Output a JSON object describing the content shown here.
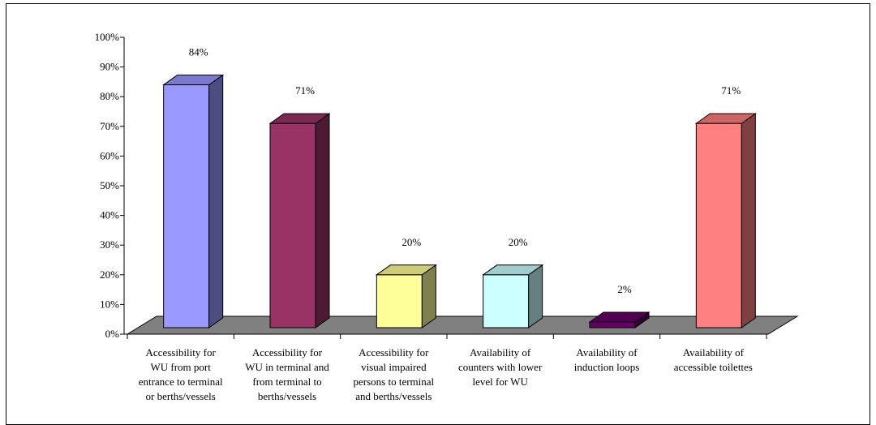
{
  "chart_data": {
    "type": "bar",
    "title": "",
    "xlabel": "",
    "ylabel": "",
    "ylim": [
      0,
      100
    ],
    "y_ticks": [
      "0%",
      "10%",
      "20%",
      "30%",
      "40%",
      "50%",
      "60%",
      "70%",
      "80%",
      "90%",
      "100%"
    ],
    "grid": false,
    "legend": "none",
    "categories": [
      [
        "Accessibility for",
        "WU from port",
        "entrance to terminal",
        "or berths/vessels"
      ],
      [
        "Accessibility for",
        "WU in terminal and",
        "from terminal to",
        "berths/vessels"
      ],
      [
        "Accessibility for",
        "visual impaired",
        "persons to terminal",
        "and berths/vessels"
      ],
      [
        "Availability of",
        "counters with lower",
        "level for WU"
      ],
      [
        "Availability of",
        "induction loops"
      ],
      [
        "Availability of",
        "accessible toilettes"
      ]
    ],
    "values": [
      84,
      71,
      20,
      20,
      2,
      71
    ],
    "data_labels": [
      "84%",
      "71%",
      "20%",
      "20%",
      "2%",
      "71%"
    ],
    "colors": [
      {
        "front": "#9999ff",
        "side": "#4d4d80",
        "top": "#7a7acc"
      },
      {
        "front": "#993366",
        "side": "#4d1a33",
        "top": "#7a2952"
      },
      {
        "front": "#ffff99",
        "side": "#80804d",
        "top": "#cccc7a"
      },
      {
        "front": "#ccffff",
        "side": "#668080",
        "top": "#a3cccc"
      },
      {
        "front": "#660066",
        "side": "#330033",
        "top": "#520052"
      },
      {
        "front": "#ff8080",
        "side": "#804040",
        "top": "#cc6666"
      }
    ],
    "floor_color": "#808080"
  }
}
